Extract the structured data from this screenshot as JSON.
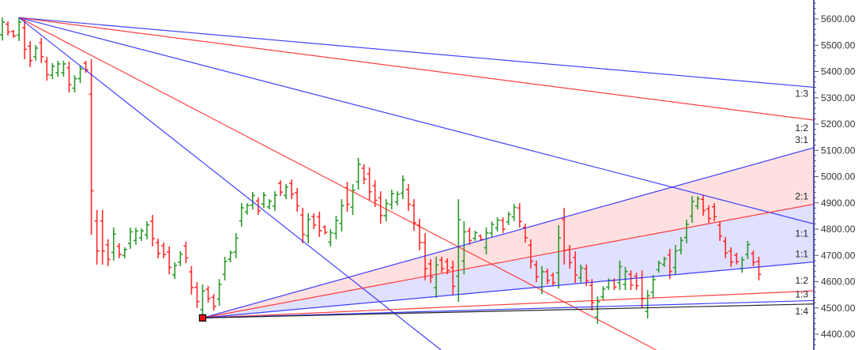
{
  "chart_data": {
    "type": "ohlc-bar",
    "title": "",
    "xlabel": "",
    "ylabel": "",
    "ylim": [
      4400,
      5600
    ],
    "y_ticks": [
      "5600.00",
      "5500.00",
      "5400.00",
      "5300.00",
      "5200.00",
      "5100.00",
      "5000.00",
      "4900.00",
      "4800.00",
      "4700.00",
      "4600.00",
      "4500.00",
      "4400.00"
    ],
    "y_axis_position": "right",
    "grid": false,
    "colors": {
      "up": "#2a9a2a",
      "down": "#ff2a2a",
      "fan_blue": "#2a2aff",
      "fan_red": "#ff2a2a",
      "fan_black": "#111111",
      "axis": "#1a1aa0",
      "fill_pink": "#ffe0e0",
      "fill_lavender": "#e0e0ff",
      "anchor": "#ee1111"
    },
    "bars": {
      "high": [
        5605,
        5591,
        5558,
        5606,
        5597,
        5516,
        5501,
        5528,
        5456,
        5432,
        5441,
        5441,
        5438,
        5386,
        5423,
        5441,
        5447,
        4873,
        4873,
        4761,
        4806,
        4746,
        4731,
        4806,
        4806,
        4803,
        4830,
        4854,
        4764,
        4749,
        4734,
        4674,
        4716,
        4752,
        4659,
        4598,
        4590,
        4584,
        4553,
        4610,
        4695,
        4719,
        4785,
        4899,
        4899,
        4941,
        4920,
        4941,
        4914,
        4944,
        4986,
        4971,
        4989,
        4956,
        4881,
        4860,
        4860,
        4866,
        4815,
        4800,
        4851,
        4914,
        4980,
        4971,
        5071,
        5047,
        5035,
        4986,
        4944,
        4914,
        4950,
        4944,
        5005,
        4971,
        4914,
        4839,
        4785,
        4686,
        4695,
        4695,
        4689,
        4680,
        4914,
        4830,
        4806,
        4794,
        4779,
        4806,
        4830,
        4845,
        4845,
        4866,
        4896,
        4899,
        4821,
        4761,
        4680,
        4659,
        4650,
        4634,
        4815,
        4881,
        4740,
        4716,
        4665,
        4665,
        4610,
        4544,
        4583,
        4613,
        4613,
        4680,
        4656,
        4643,
        4634,
        4643,
        4568,
        4625,
        4680,
        4695,
        4725,
        4740,
        4770,
        4836,
        4926,
        4926,
        4929,
        4890,
        4899,
        4830,
        4770,
        4731,
        4710,
        4695,
        4755,
        4719,
        4695
      ],
      "low": [
        5518,
        5537,
        5528,
        5516,
        5447,
        5417,
        5441,
        5432,
        5365,
        5371,
        5380,
        5380,
        5320,
        5320,
        5356,
        5395,
        4779,
        4665,
        4665,
        4659,
        4680,
        4689,
        4689,
        4725,
        4740,
        4755,
        4761,
        4734,
        4689,
        4689,
        4628,
        4610,
        4659,
        4670,
        4550,
        4500,
        4462,
        4520,
        4490,
        4508,
        4605,
        4674,
        4689,
        4809,
        4854,
        4875,
        4854,
        4881,
        4875,
        4869,
        4926,
        4914,
        4914,
        4866,
        4746,
        4746,
        4800,
        4770,
        4779,
        4734,
        4761,
        4791,
        4866,
        4854,
        4950,
        4971,
        4911,
        4884,
        4821,
        4830,
        4875,
        4890,
        4914,
        4869,
        4794,
        4719,
        4605,
        4595,
        4538,
        4634,
        4628,
        4550,
        4523,
        4628,
        4740,
        4755,
        4755,
        4704,
        4770,
        4791,
        4785,
        4815,
        4830,
        4806,
        4749,
        4650,
        4598,
        4553,
        4590,
        4583,
        4574,
        4665,
        4650,
        4595,
        4598,
        4583,
        4490,
        4439,
        4529,
        4568,
        4568,
        4568,
        4568,
        4568,
        4568,
        4499,
        4460,
        4538,
        4634,
        4656,
        4610,
        4625,
        4704,
        4746,
        4824,
        4875,
        4851,
        4824,
        4830,
        4755,
        4689,
        4656,
        4665,
        4634,
        4686,
        4659,
        4605
      ],
      "direction": [
        "up",
        "down",
        "down",
        "up",
        "down",
        "down",
        "up",
        "down",
        "down",
        "up",
        "up",
        "up",
        "down",
        "up",
        "up",
        "down",
        "down",
        "down",
        "down",
        "down",
        "up",
        "down",
        "up",
        "up",
        "up",
        "up",
        "up",
        "down",
        "down",
        "down",
        "down",
        "up",
        "up",
        "down",
        "down",
        "down",
        "up",
        "down",
        "down",
        "up",
        "up",
        "up",
        "up",
        "up",
        "up",
        "up",
        "down",
        "up",
        "up",
        "up",
        "down",
        "up",
        "down",
        "down",
        "down",
        "up",
        "down",
        "down",
        "down",
        "up",
        "up",
        "up",
        "down",
        "up",
        "up",
        "down",
        "down",
        "down",
        "down",
        "up",
        "up",
        "up",
        "up",
        "down",
        "down",
        "down",
        "down",
        "down",
        "up",
        "down",
        "down",
        "down",
        "up",
        "up",
        "down",
        "up",
        "down",
        "up",
        "up",
        "up",
        "down",
        "up",
        "up",
        "down",
        "down",
        "down",
        "down",
        "up",
        "down",
        "down",
        "up",
        "down",
        "down",
        "down",
        "up",
        "down",
        "down",
        "up",
        "up",
        "up",
        "down",
        "up",
        "up",
        "down",
        "down",
        "down",
        "up",
        "up",
        "up",
        "up",
        "down",
        "up",
        "up",
        "up",
        "up",
        "up",
        "down",
        "down",
        "down",
        "down",
        "down",
        "down",
        "down",
        "up",
        "up",
        "down",
        "down"
      ]
    },
    "gann_fans": [
      {
        "anchor_bar": 3,
        "anchor_price": 5605,
        "lines": [
          {
            "label": "1:3",
            "color": "blue",
            "end_value": 5340
          },
          {
            "label": "1:2",
            "color": "red",
            "end_value": 5215
          },
          {
            "label": "1:1",
            "color": "blue",
            "end_value": 4820
          },
          {
            "label": "",
            "color": "red",
            "end_value": 4027
          },
          {
            "label": "",
            "color": "blue",
            "end_value": 3222
          }
        ]
      },
      {
        "anchor_bar": 36,
        "anchor_price": 4462,
        "lines": [
          {
            "label": "3:1",
            "color": "blue",
            "end_value": 5110
          },
          {
            "label": "2:1",
            "color": "red",
            "end_value": 4895
          },
          {
            "label": "1:1",
            "color": "blue",
            "end_value": 4675
          },
          {
            "label": "1:2",
            "color": "red",
            "end_value": 4565
          },
          {
            "label": "1:3",
            "color": "blue",
            "end_value": 4528
          },
          {
            "label": "1:4",
            "color": "black",
            "end_value": 4515
          }
        ]
      }
    ]
  }
}
